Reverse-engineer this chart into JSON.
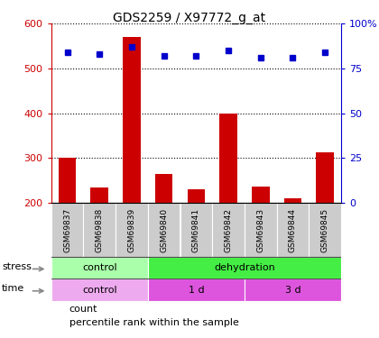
{
  "title": "GDS2259 / X97772_g_at",
  "samples": [
    "GSM69837",
    "GSM69838",
    "GSM69839",
    "GSM69840",
    "GSM69841",
    "GSM69842",
    "GSM69843",
    "GSM69844",
    "GSM69845"
  ],
  "counts": [
    300,
    235,
    570,
    265,
    230,
    400,
    237,
    210,
    312
  ],
  "percentiles": [
    84,
    83,
    87,
    82,
    82,
    85,
    81,
    81,
    84
  ],
  "ylim_left": [
    200,
    600
  ],
  "ylim_right": [
    0,
    100
  ],
  "yticks_left": [
    200,
    300,
    400,
    500,
    600
  ],
  "yticks_right": [
    0,
    25,
    50,
    75,
    100
  ],
  "bar_color": "#cc0000",
  "dot_color": "#0000cc",
  "stress_labels": [
    {
      "label": "control",
      "start": 0,
      "end": 3,
      "color": "#aaffaa"
    },
    {
      "label": "dehydration",
      "start": 3,
      "end": 9,
      "color": "#44ee44"
    }
  ],
  "time_labels": [
    {
      "label": "control",
      "start": 0,
      "end": 3,
      "color": "#eeaaee"
    },
    {
      "label": "1 d",
      "start": 3,
      "end": 6,
      "color": "#dd55dd"
    },
    {
      "label": "3 d",
      "start": 6,
      "end": 9,
      "color": "#dd55dd"
    }
  ],
  "legend_count_label": "count",
  "legend_pct_label": "percentile rank within the sample",
  "xlabel_stress": "stress",
  "xlabel_time": "time",
  "sample_bg": "#cccccc",
  "plot_bg": "#ffffff"
}
